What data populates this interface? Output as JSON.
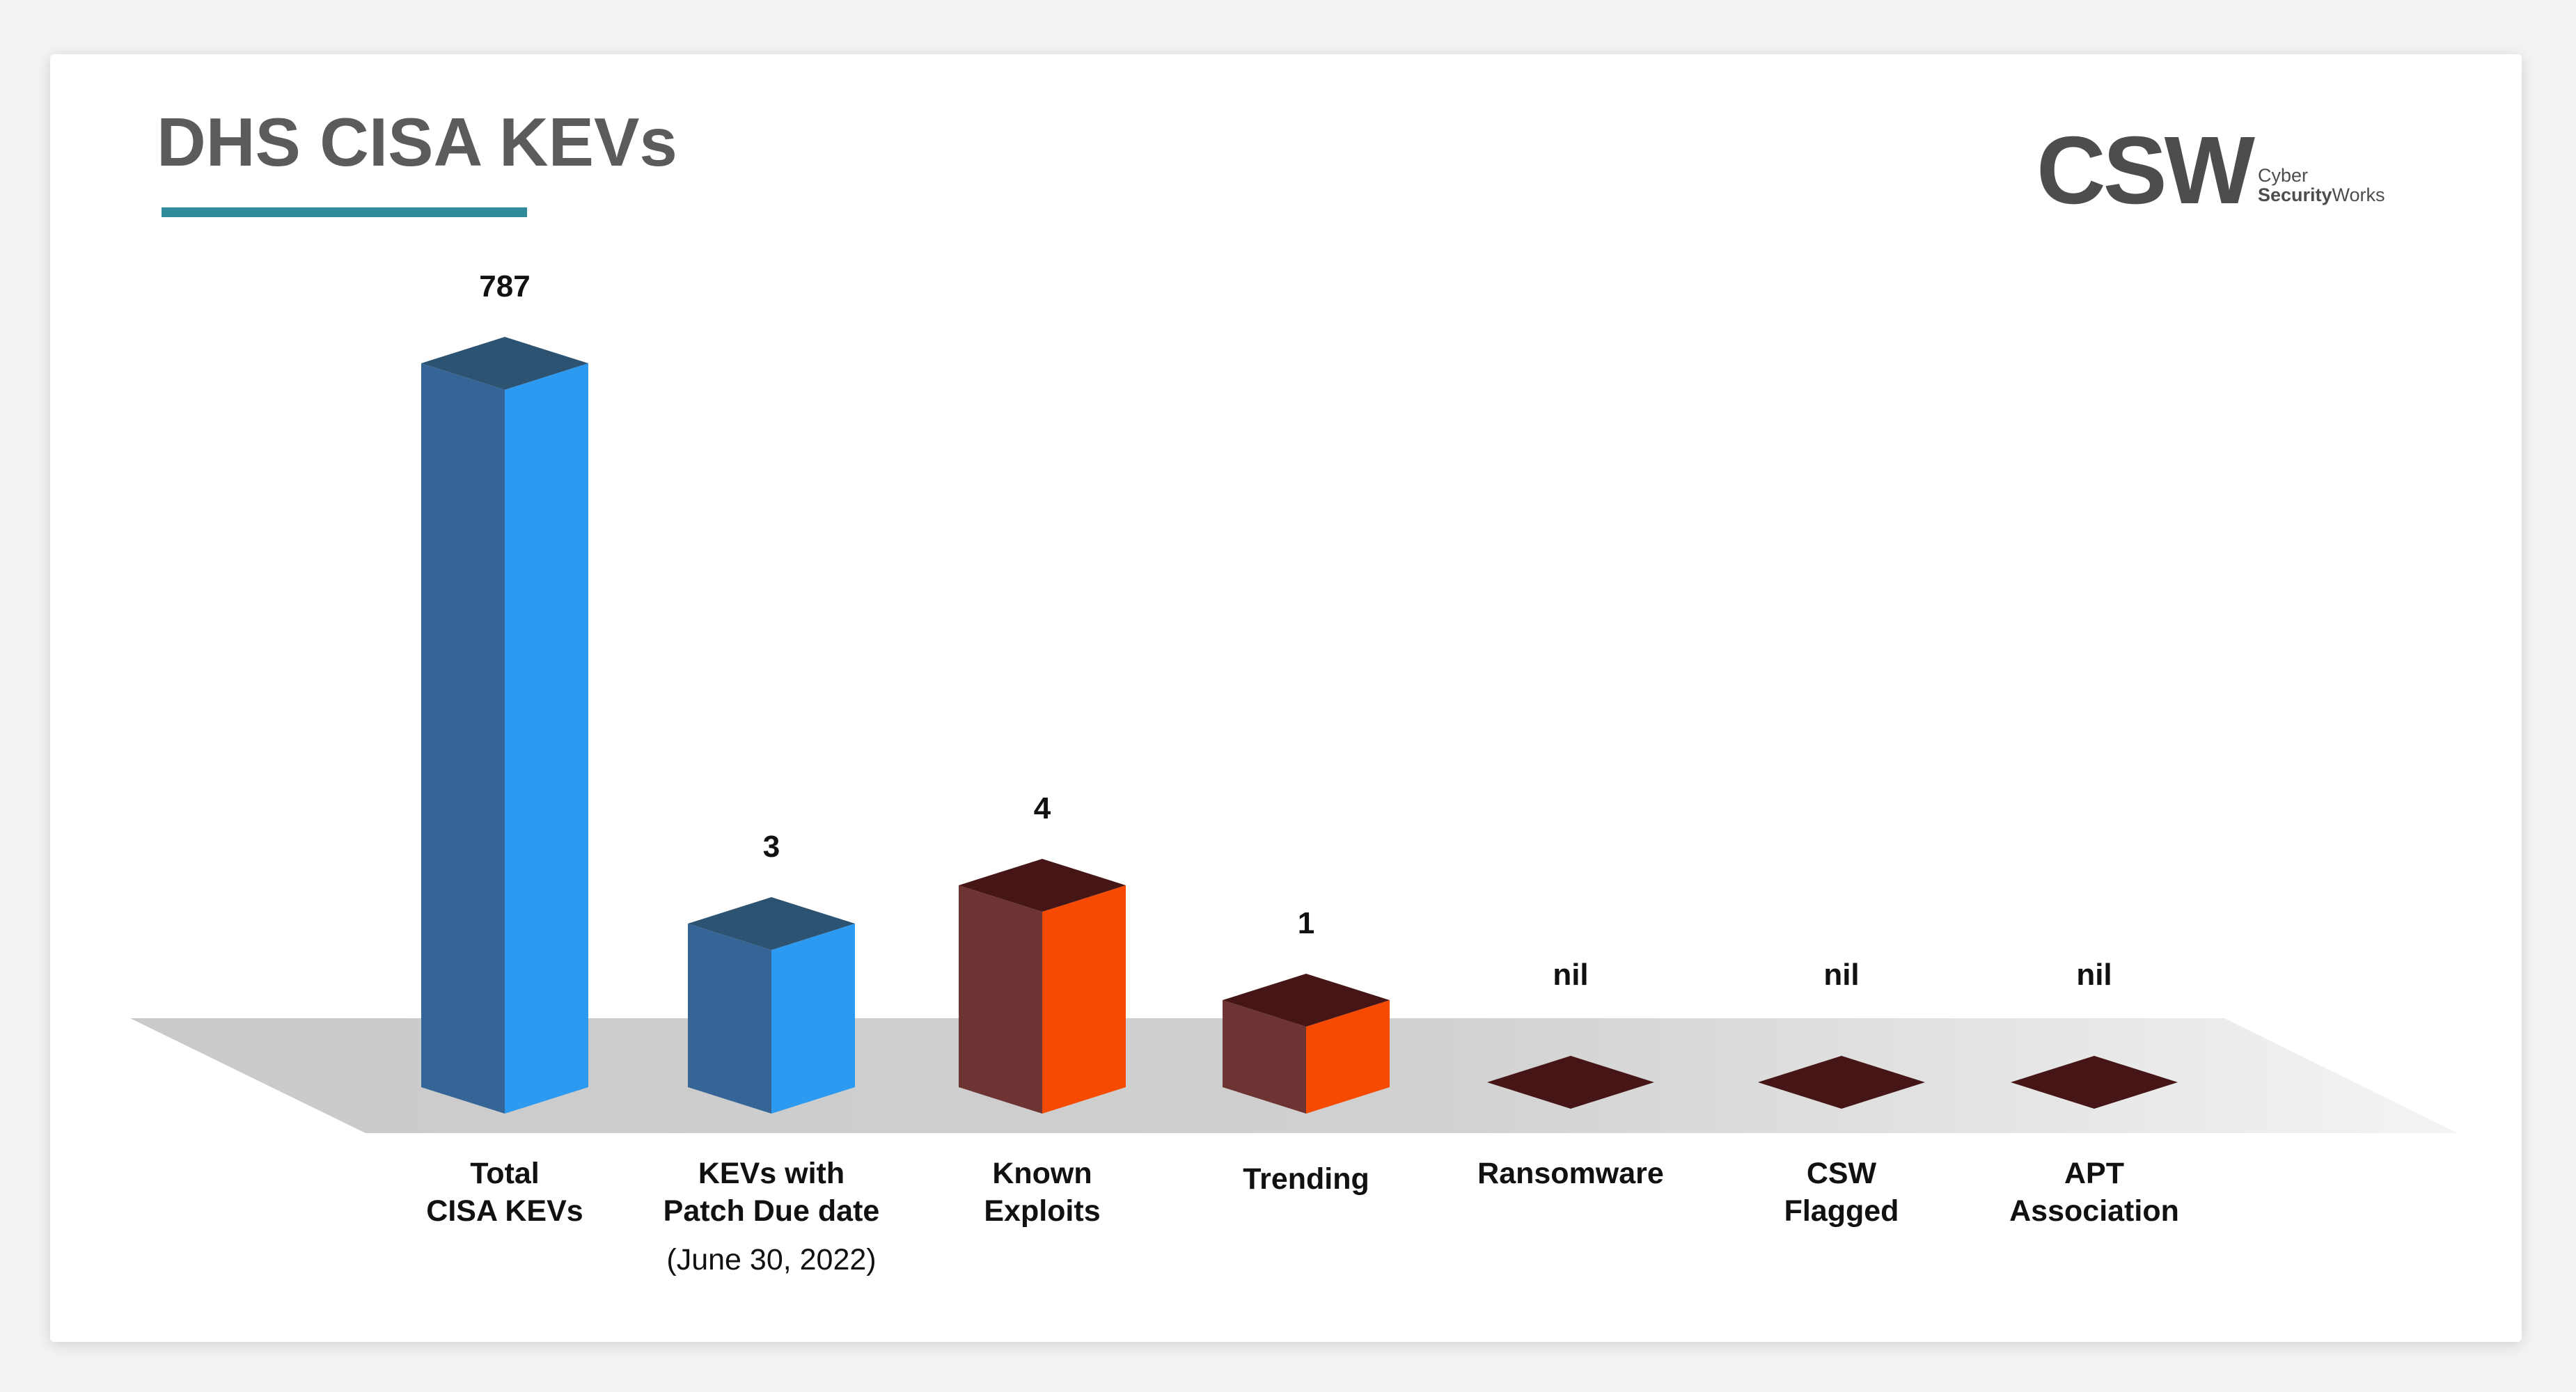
{
  "header": {
    "title": "DHS CISA KEVs"
  },
  "logo": {
    "mark": "CSW",
    "line1": "Cyber",
    "line2_bold": "Security",
    "line2_rest": "Works"
  },
  "chart_data": {
    "type": "bar",
    "title": "DHS CISA KEVs",
    "categories": [
      [
        "Total",
        "CISA KEVs"
      ],
      [
        "KEVs with",
        "Patch Due date"
      ],
      [
        "Known",
        "Exploits"
      ],
      [
        "Trending"
      ],
      [
        "Ransomware"
      ],
      [
        "CSW",
        "Flagged"
      ],
      [
        "APT",
        "Association"
      ]
    ],
    "category_notes": [
      "",
      "(June 30, 2022)",
      "",
      "",
      "",
      "",
      ""
    ],
    "values": [
      787,
      3,
      4,
      1,
      0,
      0,
      0
    ],
    "value_labels": [
      "787",
      "3",
      "4",
      "1",
      "nil",
      "nil",
      "nil"
    ],
    "colors": {
      "blue_front": "#2b9af0",
      "blue_side": "#356496",
      "blue_top": "#2d5373",
      "orange_front": "#f54a00",
      "brown_side": "#6e3333",
      "brown_top": "#461616"
    },
    "xlabel": "",
    "ylabel": ""
  }
}
